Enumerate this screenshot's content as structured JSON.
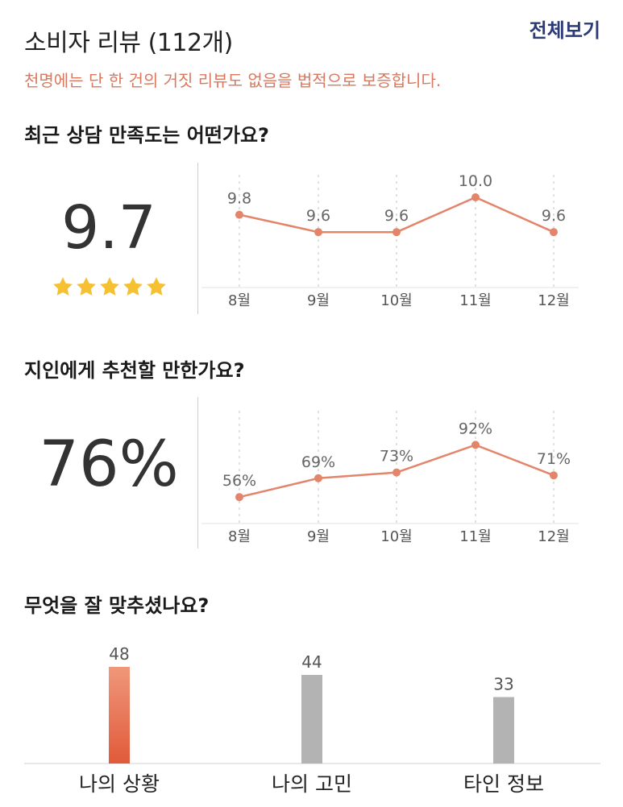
{
  "header": {
    "title": "소비자 리뷰 (112개)",
    "view_all": "전체보기",
    "notice": "천명에는 단 한 건의 거짓 리뷰도 없음을 법적으로 보증합니다."
  },
  "satisfaction": {
    "question": "최근 상담 만족도는 어떤가요?",
    "score": "9.7",
    "stars": 5
  },
  "recommend": {
    "question": "지인에게 추천할 만한가요?",
    "percent": "76%"
  },
  "fit": {
    "question": "무엇을 잘 맞추셨나요?"
  },
  "colors": {
    "accent": "#e2856a",
    "accent_dark": "#e05a3a",
    "gray_bar": "#b3b3b3",
    "star": "#f5c133",
    "title_blue": "#2c3a75"
  },
  "chart_data": [
    {
      "type": "line",
      "categories": [
        "8월",
        "9월",
        "10월",
        "11월",
        "12월"
      ],
      "labels": [
        "9.8",
        "9.6",
        "9.6",
        "10.0",
        "9.6"
      ],
      "values": [
        9.8,
        9.6,
        9.6,
        10.0,
        9.6
      ],
      "title": "",
      "xlabel": "",
      "ylabel": ""
    },
    {
      "type": "line",
      "categories": [
        "8월",
        "9월",
        "10월",
        "11월",
        "12월"
      ],
      "labels": [
        "56%",
        "69%",
        "73%",
        "92%",
        "71%"
      ],
      "values": [
        56,
        69,
        73,
        92,
        71
      ],
      "title": "",
      "xlabel": "",
      "ylabel": ""
    },
    {
      "type": "bar",
      "categories": [
        "나의 상황",
        "나의 고민",
        "타인 정보"
      ],
      "values": [
        48,
        44,
        33
      ],
      "title": "",
      "xlabel": "",
      "ylabel": ""
    }
  ]
}
